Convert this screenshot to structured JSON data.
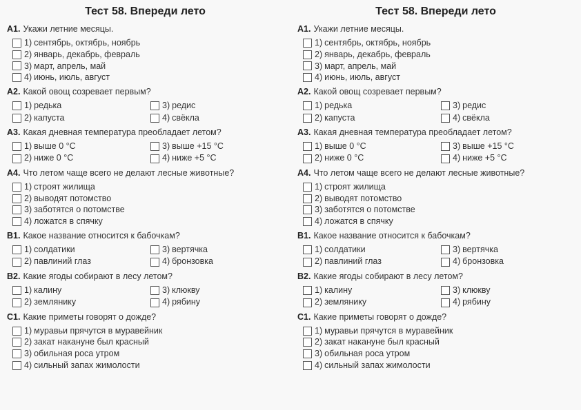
{
  "title": "Тест 58. Впереди лето",
  "questions": [
    {
      "id": "A1",
      "text": "Укажи летние месяцы.",
      "layout": "vertical",
      "options": [
        {
          "n": "1)",
          "t": "сентябрь, октябрь, ноябрь"
        },
        {
          "n": "2)",
          "t": "январь, декабрь, февраль"
        },
        {
          "n": "3)",
          "t": "март, апрель, май"
        },
        {
          "n": "4)",
          "t": "июнь, июль, август"
        }
      ]
    },
    {
      "id": "A2",
      "text": "Какой овощ созревает первым?",
      "layout": "2col",
      "options": [
        {
          "n": "1)",
          "t": "редька"
        },
        {
          "n": "3)",
          "t": "редис"
        },
        {
          "n": "2)",
          "t": "капуста"
        },
        {
          "n": "4)",
          "t": "свёкла"
        }
      ]
    },
    {
      "id": "A3",
      "text": "Какая дневная температура преобладает летом?",
      "layout": "2col",
      "options": [
        {
          "n": "1)",
          "t": "выше 0 °C"
        },
        {
          "n": "3)",
          "t": "выше +15 °C"
        },
        {
          "n": "2)",
          "t": "ниже 0 °C"
        },
        {
          "n": "4)",
          "t": "ниже +5 °C"
        }
      ]
    },
    {
      "id": "A4",
      "text": "Что летом чаще всего не делают лесные животные?",
      "layout": "vertical",
      "options": [
        {
          "n": "1)",
          "t": "строят жилища"
        },
        {
          "n": "2)",
          "t": "выводят потомство"
        },
        {
          "n": "3)",
          "t": "заботятся о потомстве"
        },
        {
          "n": "4)",
          "t": "ложатся в спячку"
        }
      ]
    },
    {
      "id": "B1",
      "text": "Какое название относится к бабочкам?",
      "layout": "2col",
      "options": [
        {
          "n": "1)",
          "t": "солдатики"
        },
        {
          "n": "3)",
          "t": "вертячка"
        },
        {
          "n": "2)",
          "t": "павлиний глаз"
        },
        {
          "n": "4)",
          "t": "бронзовка"
        }
      ]
    },
    {
      "id": "B2",
      "text": "Какие ягоды собирают в лесу летом?",
      "layout": "2col",
      "options": [
        {
          "n": "1)",
          "t": "калину"
        },
        {
          "n": "3)",
          "t": "клюкву"
        },
        {
          "n": "2)",
          "t": "землянику"
        },
        {
          "n": "4)",
          "t": "рябину"
        }
      ]
    },
    {
      "id": "C1",
      "text": "Какие приметы говорят о дожде?",
      "layout": "vertical",
      "options": [
        {
          "n": "1)",
          "t": "муравьи прячутся в муравейник"
        },
        {
          "n": "2)",
          "t": "закат накануне был красный"
        },
        {
          "n": "3)",
          "t": "обильная роса утром"
        },
        {
          "n": "4)",
          "t": "сильный запах жимолости"
        }
      ]
    }
  ]
}
